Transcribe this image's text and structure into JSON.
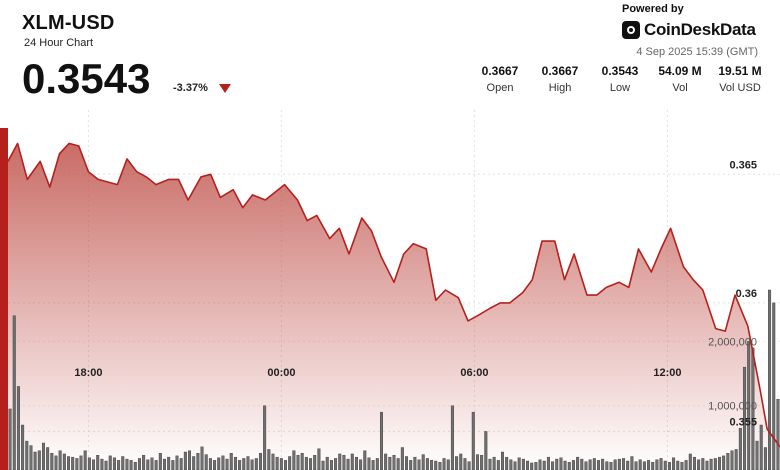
{
  "header": {
    "symbol": "XLM-USD",
    "subtitle": "24 Hour Chart",
    "price": "0.3543",
    "change": "-3.37%",
    "powered_by": "Powered by",
    "brand": "CoinDeskData",
    "timestamp": "4 Sep 2025 15:39 (GMT)"
  },
  "stats": [
    {
      "value": "0.3667",
      "label": "Open"
    },
    {
      "value": "0.3667",
      "label": "High"
    },
    {
      "value": "0.3543",
      "label": "Low"
    },
    {
      "value": "54.09 M",
      "label": "Vol"
    },
    {
      "value": "19.51 M",
      "label": "Vol USD"
    }
  ],
  "colors": {
    "line": "#b5201c",
    "fill": "#c9756f",
    "volume": "#6f6f6f",
    "down": "#b5201c"
  },
  "chart_data": {
    "type": "line",
    "title": "XLM-USD",
    "x_tick_labels": [
      "18:00",
      "00:00",
      "06:00",
      "12:00"
    ],
    "x_tick_hours": [
      2.5,
      8.5,
      14.5,
      20.5
    ],
    "x_range_hours": [
      0,
      24
    ],
    "y_ticks": [
      0.365,
      0.36,
      0.355
    ],
    "y_tick_labels": [
      "0.365",
      "0.36",
      "0.355"
    ],
    "ylim": [
      0.3535,
      0.3675
    ],
    "price_series": {
      "x_hours": [
        0,
        0.3,
        0.6,
        1,
        1.3,
        1.6,
        1.9,
        2.2,
        2.5,
        2.8,
        3.1,
        3.4,
        3.7,
        4,
        4.3,
        4.6,
        5,
        5.3,
        5.6,
        6,
        6.3,
        6.6,
        7,
        7.3,
        7.6,
        8,
        8.3,
        8.6,
        9,
        9.3,
        9.6,
        10,
        10.3,
        10.6,
        11,
        11.3,
        11.6,
        12,
        12.3,
        12.6,
        13,
        13.3,
        13.6,
        14,
        14.3,
        14.6,
        15,
        15.3,
        15.6,
        16,
        16.3,
        16.6,
        17,
        17.3,
        17.6,
        18,
        18.3,
        18.6,
        19,
        19.3,
        19.6,
        20,
        20.3,
        20.6,
        21,
        21.3,
        21.6,
        22,
        22.3,
        22.6,
        23,
        23.2,
        23.4,
        23.6,
        24
      ],
      "y": [
        0.3655,
        0.3662,
        0.3648,
        0.3655,
        0.3645,
        0.3658,
        0.3662,
        0.3661,
        0.3651,
        0.3648,
        0.3647,
        0.3646,
        0.3656,
        0.3651,
        0.3649,
        0.3646,
        0.3648,
        0.3648,
        0.364,
        0.3649,
        0.365,
        0.3641,
        0.3644,
        0.3637,
        0.3642,
        0.364,
        0.3643,
        0.3646,
        0.364,
        0.3632,
        0.3634,
        0.3625,
        0.3629,
        0.3619,
        0.3633,
        0.3628,
        0.3618,
        0.3608,
        0.3619,
        0.3623,
        0.3621,
        0.3601,
        0.3605,
        0.3602,
        0.3593,
        0.3595,
        0.3598,
        0.36,
        0.36,
        0.3604,
        0.3609,
        0.3624,
        0.3624,
        0.3609,
        0.3619,
        0.3603,
        0.3603,
        0.3606,
        0.3608,
        0.3606,
        0.3621,
        0.3612,
        0.3621,
        0.3629,
        0.3614,
        0.3609,
        0.3605,
        0.359,
        0.3589,
        0.3603,
        0.3591,
        0.3578,
        0.3565,
        0.3551,
        0.3544
      ]
    },
    "volume_series": {
      "axis_ticks": [
        2000000,
        1000000
      ],
      "axis_tick_labels": [
        "2,000,000",
        "1,000,000"
      ],
      "ylim": [
        0,
        2800000
      ],
      "values": [
        950000,
        2400000,
        1300000,
        700000,
        450000,
        380000,
        280000,
        300000,
        420000,
        350000,
        260000,
        220000,
        300000,
        250000,
        210000,
        200000,
        180000,
        220000,
        300000,
        190000,
        160000,
        230000,
        170000,
        140000,
        220000,
        190000,
        150000,
        210000,
        170000,
        150000,
        120000,
        180000,
        230000,
        160000,
        190000,
        150000,
        260000,
        170000,
        200000,
        150000,
        220000,
        180000,
        280000,
        300000,
        210000,
        260000,
        360000,
        240000,
        180000,
        150000,
        190000,
        220000,
        170000,
        260000,
        200000,
        150000,
        180000,
        210000,
        160000,
        180000,
        260000,
        1000000,
        320000,
        250000,
        200000,
        180000,
        150000,
        210000,
        300000,
        230000,
        260000,
        200000,
        180000,
        230000,
        330000,
        140000,
        200000,
        150000,
        180000,
        250000,
        230000,
        170000,
        250000,
        200000,
        160000,
        300000,
        190000,
        150000,
        180000,
        900000,
        250000,
        200000,
        230000,
        180000,
        350000,
        210000,
        150000,
        200000,
        160000,
        240000,
        180000,
        150000,
        140000,
        120000,
        180000,
        160000,
        1000000,
        210000,
        250000,
        180000,
        130000,
        900000,
        240000,
        230000,
        600000,
        170000,
        200000,
        150000,
        280000,
        200000,
        160000,
        130000,
        190000,
        170000,
        140000,
        110000,
        120000,
        160000,
        140000,
        200000,
        130000,
        170000,
        190000,
        140000,
        120000,
        150000,
        200000,
        170000,
        130000,
        160000,
        180000,
        150000,
        170000,
        130000,
        120000,
        160000,
        170000,
        180000,
        140000,
        210000,
        130000,
        160000,
        130000,
        150000,
        120000,
        160000,
        180000,
        140000,
        120000,
        190000,
        140000,
        120000,
        150000,
        250000,
        200000,
        160000,
        180000,
        140000,
        170000,
        180000,
        200000,
        220000,
        260000,
        300000,
        320000,
        650000,
        1600000,
        2000000,
        1900000,
        450000,
        700000,
        350000,
        2800000,
        2600000,
        1100000
      ]
    }
  }
}
